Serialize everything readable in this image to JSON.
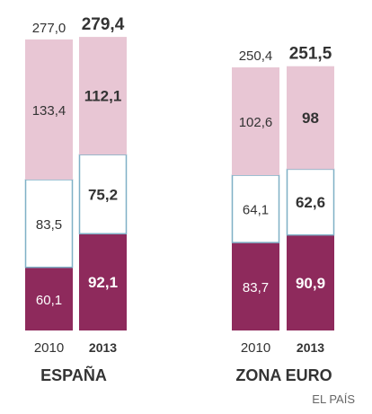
{
  "chart_data": {
    "type": "bar",
    "stacked": true,
    "groups": [
      {
        "name": "ESPAÑA",
        "bars": [
          {
            "year": "2010",
            "total": "277,0",
            "segments": [
              {
                "value": 60.1,
                "label": "60,1"
              },
              {
                "value": 83.5,
                "label": "83,5"
              },
              {
                "value": 133.4,
                "label": "133,4"
              }
            ]
          },
          {
            "year": "2013",
            "total": "279,4",
            "segments": [
              {
                "value": 92.1,
                "label": "92,1"
              },
              {
                "value": 75.2,
                "label": "75,2"
              },
              {
                "value": 112.1,
                "label": "112,1"
              }
            ]
          }
        ]
      },
      {
        "name": "ZONA EURO",
        "bars": [
          {
            "year": "2010",
            "total": "250,4",
            "segments": [
              {
                "value": 83.7,
                "label": "83,7"
              },
              {
                "value": 64.1,
                "label": "64,1"
              },
              {
                "value": 102.6,
                "label": "102,6"
              }
            ]
          },
          {
            "year": "2013",
            "total": "251,5",
            "segments": [
              {
                "value": 90.9,
                "label": "90,9"
              },
              {
                "value": 62.6,
                "label": "62,6"
              },
              {
                "value": 98,
                "label": "98"
              }
            ]
          }
        ]
      }
    ],
    "colors": {
      "bottom": "#8e2a5c",
      "middle_fill": "#ffffff",
      "middle_border": "#7fb0c6",
      "top": "#e8c6d4"
    },
    "grid": false,
    "legend": "none"
  },
  "source": "EL PAÍS"
}
